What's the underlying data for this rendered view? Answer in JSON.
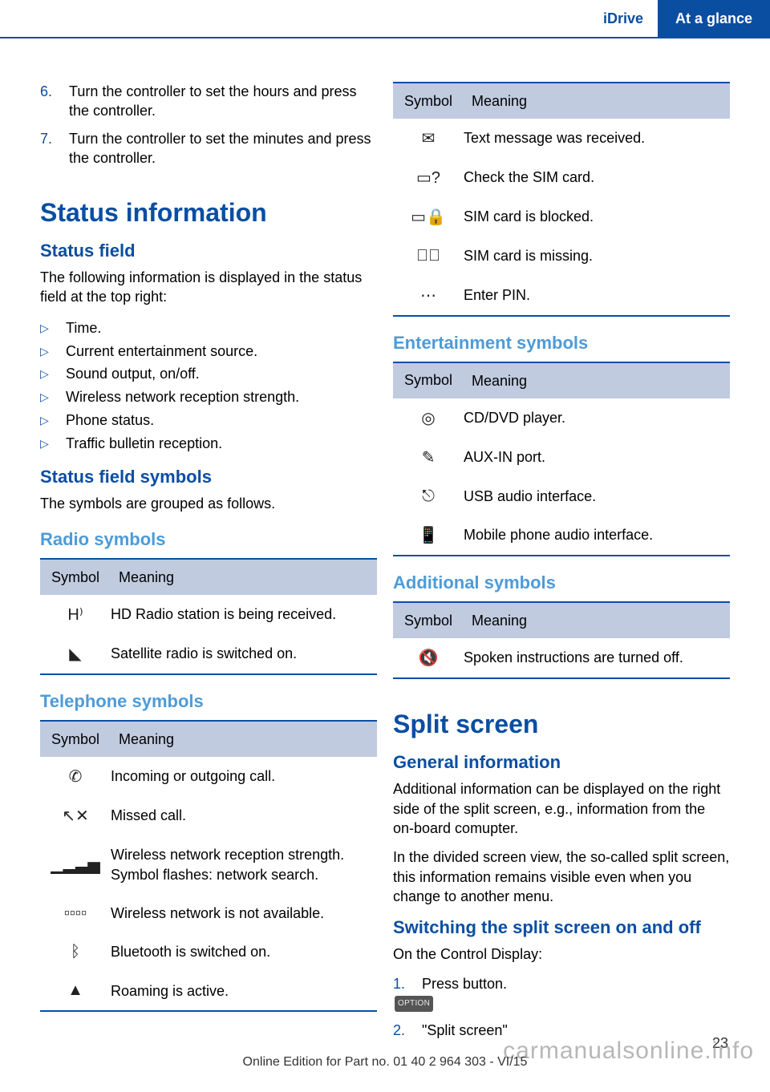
{
  "header": {
    "idrive": "iDrive",
    "section": "At a glance"
  },
  "colors": {
    "brand": "#0a4ea2",
    "light_heading": "#4d9bd8",
    "table_header_bg": "#c0cbe0",
    "text": "#000000",
    "page_bg": "#ffffff",
    "watermark": "#888888"
  },
  "left": {
    "continued_ol": [
      {
        "n": "6.",
        "t": "Turn the controller to set the hours and press the controller."
      },
      {
        "n": "7.",
        "t": "Turn the controller to set the minutes and press the controller."
      }
    ],
    "h1": "Status information",
    "h2_field": "Status field",
    "field_intro": "The following information is displayed in the status field at the top right:",
    "field_bullets": [
      "Time.",
      "Current entertainment source.",
      "Sound output, on/off.",
      "Wireless network reception strength.",
      "Phone status.",
      "Traffic bulletin reception."
    ],
    "h2_symbols": "Status field symbols",
    "symbols_intro": "The symbols are grouped as follows.",
    "radio": {
      "title": "Radio symbols",
      "headers": {
        "sym": "Symbol",
        "mean": "Meaning"
      },
      "rows": [
        {
          "icon": "HD",
          "mean": "HD Radio station is being received."
        },
        {
          "icon": "sat",
          "mean": "Satellite radio is switched on."
        }
      ]
    },
    "telephone": {
      "title": "Telephone symbols",
      "headers": {
        "sym": "Symbol",
        "mean": "Meaning"
      },
      "rows": [
        {
          "icon": "call",
          "mean": "Incoming or outgoing call."
        },
        {
          "icon": "missed",
          "mean": "Missed call."
        },
        {
          "icon": "signal",
          "mean": "Wireless network reception strength.\nSymbol flashes: network search."
        },
        {
          "icon": "nosignal",
          "mean": "Wireless network is not available."
        },
        {
          "icon": "bt",
          "mean": "Bluetooth is switched on."
        },
        {
          "icon": "roam",
          "mean": "Roaming is active."
        }
      ]
    }
  },
  "right": {
    "telephone_cont": {
      "headers": {
        "sym": "Symbol",
        "mean": "Meaning"
      },
      "rows": [
        {
          "icon": "msg",
          "mean": "Text message was received."
        },
        {
          "icon": "checksim",
          "mean": "Check the SIM card."
        },
        {
          "icon": "simblock",
          "mean": "SIM card is blocked."
        },
        {
          "icon": "simmiss",
          "mean": "SIM card is missing."
        },
        {
          "icon": "pin",
          "mean": "Enter PIN."
        }
      ]
    },
    "entertainment": {
      "title": "Entertainment symbols",
      "headers": {
        "sym": "Symbol",
        "mean": "Meaning"
      },
      "rows": [
        {
          "icon": "cd",
          "mean": "CD/DVD player."
        },
        {
          "icon": "aux",
          "mean": "AUX-IN port."
        },
        {
          "icon": "usb",
          "mean": "USB audio interface."
        },
        {
          "icon": "phoneaudio",
          "mean": "Mobile phone audio interface."
        }
      ]
    },
    "additional": {
      "title": "Additional symbols",
      "headers": {
        "sym": "Symbol",
        "mean": "Meaning"
      },
      "rows": [
        {
          "icon": "mute",
          "mean": "Spoken instructions are turned off."
        }
      ]
    },
    "split": {
      "h1": "Split screen",
      "h2_gen": "General information",
      "p1": "Additional information can be displayed on the right side of the split screen, e.g., information from the on-board comupter.",
      "p2": "In the divided screen view, the so-called split screen, this information remains visible even when you change to another menu.",
      "h2_switch": "Switching the split screen on and off",
      "p3": "On the Control Display:",
      "ol": [
        {
          "n": "1.",
          "badge": "OPTION",
          "t": " Press button."
        },
        {
          "n": "2.",
          "t": "\"Split screen\""
        }
      ]
    }
  },
  "icons": {
    "HD": "H⁾",
    "sat": "◣",
    "call": "✆",
    "missed": "↖✕",
    "signal": "▁▂▃▅",
    "nosignal": "▫▫▫▫",
    "bt": "ᛒ",
    "roam": "▲",
    "msg": "✉",
    "checksim": "▭?",
    "simblock": "▭🔒",
    "simmiss": "▭⃠",
    "pin": "⋯",
    "cd": "◎",
    "aux": "✎",
    "usb": "⎋",
    "phoneaudio": "📱",
    "mute": "🔇"
  },
  "footer": "Online Edition for Part no. 01 40 2 964 303 - VI/15",
  "page": "23",
  "watermark": "carmanualsonline.info"
}
